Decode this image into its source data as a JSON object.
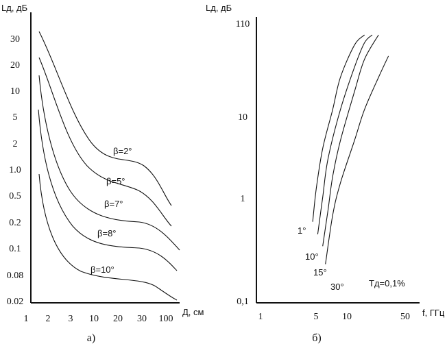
{
  "chart_data": [
    {
      "type": "line",
      "panel_label": "а)",
      "ylabel": "Lд, дБ",
      "xlabel": "Д, см",
      "y_scale": "log",
      "x_scale": "log",
      "y_ticks": [
        "30",
        "20",
        "10",
        "5",
        "2",
        "1.0",
        "0.5",
        "0.2",
        "0.1",
        "0.08",
        "0.02"
      ],
      "x_ticks": [
        "1",
        "2",
        "3",
        "10",
        "20",
        "30",
        "100"
      ],
      "series": [
        {
          "name": "β=2°",
          "x": [
            "1.5",
            "2",
            "3",
            "10",
            "20",
            "30",
            "100"
          ],
          "y": [
            "30",
            "13",
            "4",
            "1.3",
            "1.0",
            "0.7",
            "0.4"
          ]
        },
        {
          "name": "β=5°",
          "x": [
            "1.5",
            "2",
            "3",
            "10",
            "20",
            "30",
            "100"
          ],
          "y": [
            "20",
            "8",
            "2",
            "0.9",
            "0.6",
            "0.5",
            "0.2"
          ]
        },
        {
          "name": "β=7°",
          "x": [
            "1.5",
            "2",
            "3",
            "10",
            "20",
            "30",
            "100"
          ],
          "y": [
            "10",
            "2",
            "0.8",
            "0.4",
            "0.3",
            "0.25",
            "0.1"
          ]
        },
        {
          "name": "β=8°",
          "x": [
            "1.5",
            "2",
            "3",
            "10",
            "20",
            "30",
            "100"
          ],
          "y": [
            "5",
            "0.8",
            "0.3",
            "0.15",
            "0.1",
            "0.09",
            "0.06"
          ]
        },
        {
          "name": "β=10°",
          "x": [
            "1.5",
            "2",
            "3",
            "10",
            "20",
            "30",
            "100"
          ],
          "y": [
            "1.0",
            "0.2",
            "0.09",
            "0.06",
            "0.05",
            "0.04",
            "0.02"
          ]
        }
      ]
    },
    {
      "type": "line",
      "panel_label": "б)",
      "ylabel": "Lд, дБ",
      "xlabel": "f, ГГц",
      "y_scale": "log",
      "x_scale": "log",
      "y_ticks": [
        "110",
        "10",
        "1",
        "0,1"
      ],
      "x_ticks": [
        "1",
        "5",
        "10",
        "50"
      ],
      "annotation": "Тд=0,1%",
      "series": [
        {
          "name": "1°",
          "x": [
            4.5,
            5,
            6,
            8,
            10,
            15,
            20
          ],
          "y": [
            0.5,
            1.3,
            4,
            12,
            30,
            75,
            100
          ]
        },
        {
          "name": "10°",
          "x": [
            5.2,
            6,
            7,
            10,
            15,
            20,
            25
          ],
          "y": [
            0.35,
            1.0,
            3,
            12,
            40,
            80,
            100
          ]
        },
        {
          "name": "15°",
          "x": [
            6,
            7,
            8,
            10,
            15,
            20,
            30
          ],
          "y": [
            0.25,
            0.7,
            1.8,
            5,
            20,
            50,
            100
          ]
        },
        {
          "name": "30°",
          "x": [
            6.5,
            8,
            10,
            15,
            20,
            30,
            40
          ],
          "y": [
            0.15,
            0.6,
            1.5,
            5,
            12,
            30,
            55
          ]
        }
      ]
    }
  ]
}
